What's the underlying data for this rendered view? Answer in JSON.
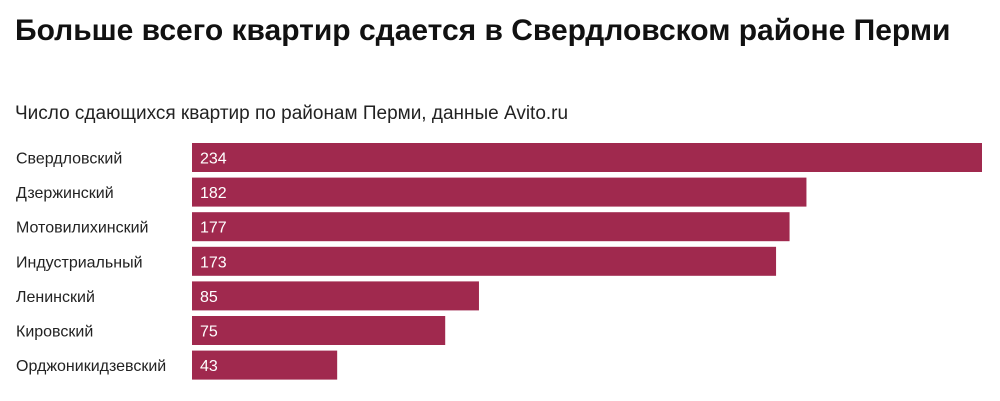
{
  "chart_data": {
    "type": "bar",
    "orientation": "horizontal",
    "title": "Больше всего квартир сдается в Свердловском районе Перми",
    "subtitle": "Число сдающихся квартир по районам Перми, данные Avito.ru",
    "categories": [
      "Свердловский",
      "Дзержинский",
      "Мотовилихинский",
      "Индустриальный",
      "Ленинский",
      "Кировский",
      "Орджоникидзевский"
    ],
    "values": [
      234,
      182,
      177,
      173,
      85,
      75,
      43
    ],
    "xlabel": "",
    "ylabel": "",
    "xlim": [
      0,
      234
    ],
    "grid": false,
    "bar_color": "#a0294e"
  }
}
